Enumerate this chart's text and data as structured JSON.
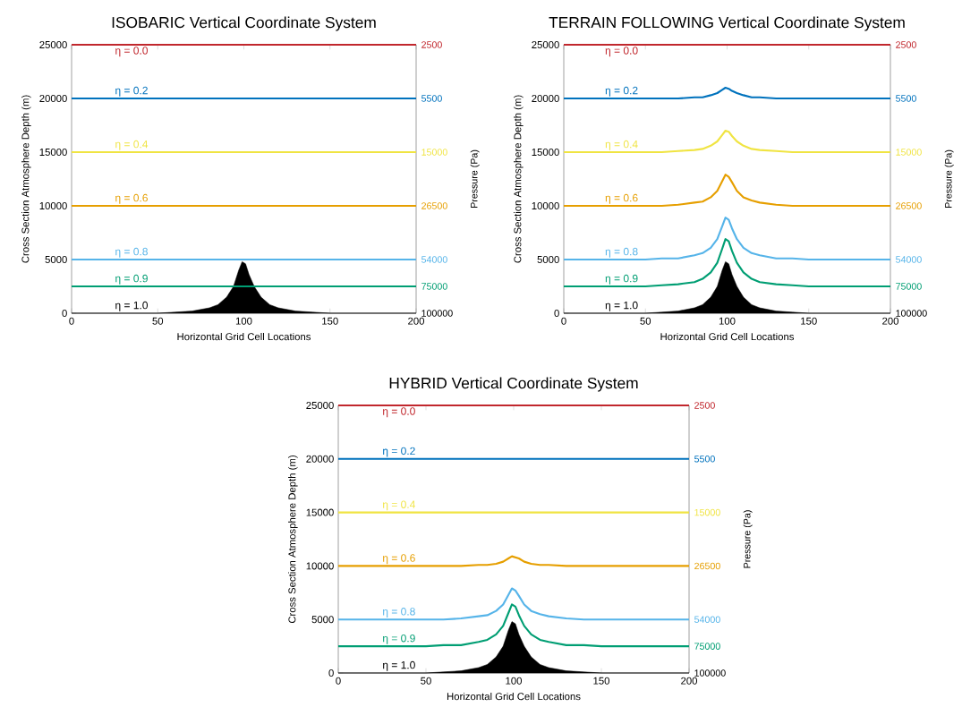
{
  "chart_data": [
    {
      "type": "line",
      "title": "ISOBARIC Vertical Coordinate System",
      "xlabel": "Horizontal Grid Cell Locations",
      "ylabel": "Cross Section Atmosphere Depth (m)",
      "y2label": "Pressure (Pa)",
      "xlim": [
        0,
        200
      ],
      "ylim": [
        0,
        25000
      ],
      "xticks": [
        0,
        50,
        100,
        150,
        200
      ],
      "yticks": [
        0,
        5000,
        10000,
        15000,
        20000,
        25000
      ],
      "annotations": [
        "2500",
        "5500",
        "15000",
        "26500",
        "54000",
        "75000",
        "100000"
      ],
      "x": [
        0,
        30,
        50,
        60,
        70,
        80,
        85,
        90,
        94,
        97,
        99,
        101,
        103,
        106,
        110,
        115,
        120,
        130,
        140,
        150,
        170,
        200
      ],
      "series": [
        {
          "name": "η = 0.0",
          "color": "#c1272d",
          "values": [
            25000,
            25000,
            25000,
            25000,
            25000,
            25000,
            25000,
            25000,
            25000,
            25000,
            25000,
            25000,
            25000,
            25000,
            25000,
            25000,
            25000,
            25000,
            25000,
            25000,
            25000,
            25000
          ]
        },
        {
          "name": "η = 0.2",
          "color": "#0072bd",
          "values": [
            20000,
            20000,
            20000,
            20000,
            20000,
            20000,
            20000,
            20000,
            20000,
            20000,
            20000,
            20000,
            20000,
            20000,
            20000,
            20000,
            20000,
            20000,
            20000,
            20000,
            20000,
            20000
          ]
        },
        {
          "name": "η = 0.4",
          "color": "#f0e442",
          "values": [
            15000,
            15000,
            15000,
            15000,
            15000,
            15000,
            15000,
            15000,
            15000,
            15000,
            15000,
            15000,
            15000,
            15000,
            15000,
            15000,
            15000,
            15000,
            15000,
            15000,
            15000,
            15000
          ]
        },
        {
          "name": "η = 0.6",
          "color": "#e69f00",
          "values": [
            10000,
            10000,
            10000,
            10000,
            10000,
            10000,
            10000,
            10000,
            10000,
            10000,
            10000,
            10000,
            10000,
            10000,
            10000,
            10000,
            10000,
            10000,
            10000,
            10000,
            10000,
            10000
          ]
        },
        {
          "name": "η = 0.8",
          "color": "#56b4e9",
          "values": [
            5000,
            5000,
            5000,
            5000,
            5000,
            5000,
            5000,
            5000,
            5000,
            5000,
            5000,
            5000,
            5000,
            5000,
            5000,
            5000,
            5000,
            5000,
            5000,
            5000,
            5000,
            5000
          ]
        },
        {
          "name": "η = 0.9",
          "color": "#009e73",
          "values": [
            2500,
            2500,
            2500,
            2500,
            2500,
            2500,
            2500,
            2500,
            2500,
            2500,
            2500,
            2500,
            2500,
            2500,
            2500,
            2500,
            2500,
            2500,
            2500,
            2500,
            2500,
            2500
          ]
        },
        {
          "name": "η = 1.0",
          "color": "#000000",
          "type": "area",
          "values": [
            0,
            0,
            0,
            100,
            200,
            500,
            800,
            1500,
            2500,
            4000,
            4800,
            4600,
            3600,
            2500,
            1500,
            800,
            500,
            200,
            100,
            0,
            0,
            0
          ]
        }
      ]
    },
    {
      "type": "line",
      "title": "TERRAIN FOLLOWING Vertical Coordinate System",
      "xlabel": "Horizontal Grid Cell Locations",
      "ylabel": "Cross Section Atmosphere Depth (m)",
      "y2label": "Pressure (Pa)",
      "xlim": [
        0,
        200
      ],
      "ylim": [
        0,
        25000
      ],
      "xticks": [
        0,
        50,
        100,
        150,
        200
      ],
      "yticks": [
        0,
        5000,
        10000,
        15000,
        20000,
        25000
      ],
      "annotations": [
        "2500",
        "5500",
        "15000",
        "26500",
        "54000",
        "75000",
        "100000"
      ],
      "x": [
        0,
        30,
        50,
        60,
        70,
        80,
        85,
        90,
        94,
        97,
        99,
        101,
        103,
        106,
        110,
        115,
        120,
        130,
        140,
        150,
        170,
        200
      ],
      "series": [
        {
          "name": "η = 0.0",
          "color": "#c1272d",
          "values": [
            25000,
            25000,
            25000,
            25000,
            25000,
            25000,
            25000,
            25000,
            25000,
            25000,
            25000,
            25000,
            25000,
            25000,
            25000,
            25000,
            25000,
            25000,
            25000,
            25000,
            25000,
            25000
          ]
        },
        {
          "name": "η = 0.2",
          "color": "#0072bd",
          "values": [
            20000,
            20000,
            20000,
            20000,
            20000,
            20100,
            20100,
            20300,
            20500,
            20800,
            21000,
            20900,
            20700,
            20500,
            20300,
            20100,
            20100,
            20000,
            20000,
            20000,
            20000,
            20000
          ]
        },
        {
          "name": "η = 0.4",
          "color": "#f0e442",
          "values": [
            15000,
            15000,
            15000,
            15000,
            15100,
            15200,
            15300,
            15600,
            16000,
            16600,
            17000,
            16900,
            16500,
            16000,
            15600,
            15300,
            15200,
            15100,
            15000,
            15000,
            15000,
            15000
          ]
        },
        {
          "name": "η = 0.6",
          "color": "#e69f00",
          "values": [
            10000,
            10000,
            10000,
            10000,
            10100,
            10300,
            10400,
            10800,
            11400,
            12300,
            12900,
            12700,
            12200,
            11400,
            10800,
            10500,
            10300,
            10100,
            10000,
            10000,
            10000,
            10000
          ]
        },
        {
          "name": "η = 0.8",
          "color": "#56b4e9",
          "values": [
            5000,
            5000,
            5000,
            5100,
            5100,
            5400,
            5600,
            6100,
            6900,
            8100,
            8900,
            8700,
            7900,
            6900,
            6100,
            5600,
            5400,
            5100,
            5100,
            5000,
            5000,
            5000
          ]
        },
        {
          "name": "η = 0.9",
          "color": "#009e73",
          "values": [
            2500,
            2500,
            2500,
            2600,
            2700,
            2900,
            3200,
            3800,
            4700,
            6000,
            6900,
            6700,
            5800,
            4700,
            3800,
            3200,
            2900,
            2700,
            2600,
            2500,
            2500,
            2500
          ]
        },
        {
          "name": "η = 1.0",
          "color": "#000000",
          "type": "area",
          "values": [
            0,
            0,
            0,
            100,
            200,
            500,
            800,
            1500,
            2500,
            4000,
            4800,
            4600,
            3600,
            2500,
            1500,
            800,
            500,
            200,
            100,
            0,
            0,
            0
          ]
        }
      ]
    },
    {
      "type": "line",
      "title": "HYBRID Vertical Coordinate System",
      "xlabel": "Horizontal Grid Cell Locations",
      "ylabel": "Cross Section Atmosphere Depth (m)",
      "y2label": "Pressure (Pa)",
      "xlim": [
        0,
        200
      ],
      "ylim": [
        0,
        25000
      ],
      "xticks": [
        0,
        50,
        100,
        150,
        200
      ],
      "yticks": [
        0,
        5000,
        10000,
        15000,
        20000,
        25000
      ],
      "annotations": [
        "2500",
        "5500",
        "15000",
        "26500",
        "54000",
        "75000",
        "100000"
      ],
      "x": [
        0,
        30,
        50,
        60,
        70,
        80,
        85,
        90,
        94,
        97,
        99,
        101,
        103,
        106,
        110,
        115,
        120,
        130,
        140,
        150,
        170,
        200
      ],
      "series": [
        {
          "name": "η = 0.0",
          "color": "#c1272d",
          "values": [
            25000,
            25000,
            25000,
            25000,
            25000,
            25000,
            25000,
            25000,
            25000,
            25000,
            25000,
            25000,
            25000,
            25000,
            25000,
            25000,
            25000,
            25000,
            25000,
            25000,
            25000,
            25000
          ]
        },
        {
          "name": "η = 0.2",
          "color": "#0072bd",
          "values": [
            20000,
            20000,
            20000,
            20000,
            20000,
            20000,
            20000,
            20000,
            20000,
            20000,
            20000,
            20000,
            20000,
            20000,
            20000,
            20000,
            20000,
            20000,
            20000,
            20000,
            20000,
            20000
          ]
        },
        {
          "name": "η = 0.4",
          "color": "#f0e442",
          "values": [
            15000,
            15000,
            15000,
            15000,
            15000,
            15000,
            15000,
            15000,
            15000,
            15000,
            15000,
            15000,
            15000,
            15000,
            15000,
            15000,
            15000,
            15000,
            15000,
            15000,
            15000,
            15000
          ]
        },
        {
          "name": "η = 0.6",
          "color": "#e69f00",
          "values": [
            10000,
            10000,
            10000,
            10000,
            10000,
            10100,
            10100,
            10200,
            10400,
            10700,
            10900,
            10800,
            10700,
            10400,
            10200,
            10100,
            10100,
            10000,
            10000,
            10000,
            10000,
            10000
          ]
        },
        {
          "name": "η = 0.8",
          "color": "#56b4e9",
          "values": [
            5000,
            5000,
            5000,
            5000,
            5100,
            5300,
            5400,
            5800,
            6400,
            7300,
            7900,
            7700,
            7200,
            6400,
            5800,
            5500,
            5300,
            5100,
            5000,
            5000,
            5000,
            5000
          ]
        },
        {
          "name": "η = 0.9",
          "color": "#009e73",
          "values": [
            2500,
            2500,
            2500,
            2600,
            2600,
            2900,
            3100,
            3600,
            4400,
            5600,
            6400,
            6200,
            5400,
            4400,
            3600,
            3100,
            2900,
            2600,
            2600,
            2500,
            2500,
            2500
          ]
        },
        {
          "name": "η = 1.0",
          "color": "#000000",
          "type": "area",
          "values": [
            0,
            0,
            0,
            100,
            200,
            500,
            800,
            1500,
            2500,
            4000,
            4800,
            4600,
            3600,
            2500,
            1500,
            800,
            500,
            200,
            100,
            0,
            0,
            0
          ]
        }
      ]
    }
  ]
}
